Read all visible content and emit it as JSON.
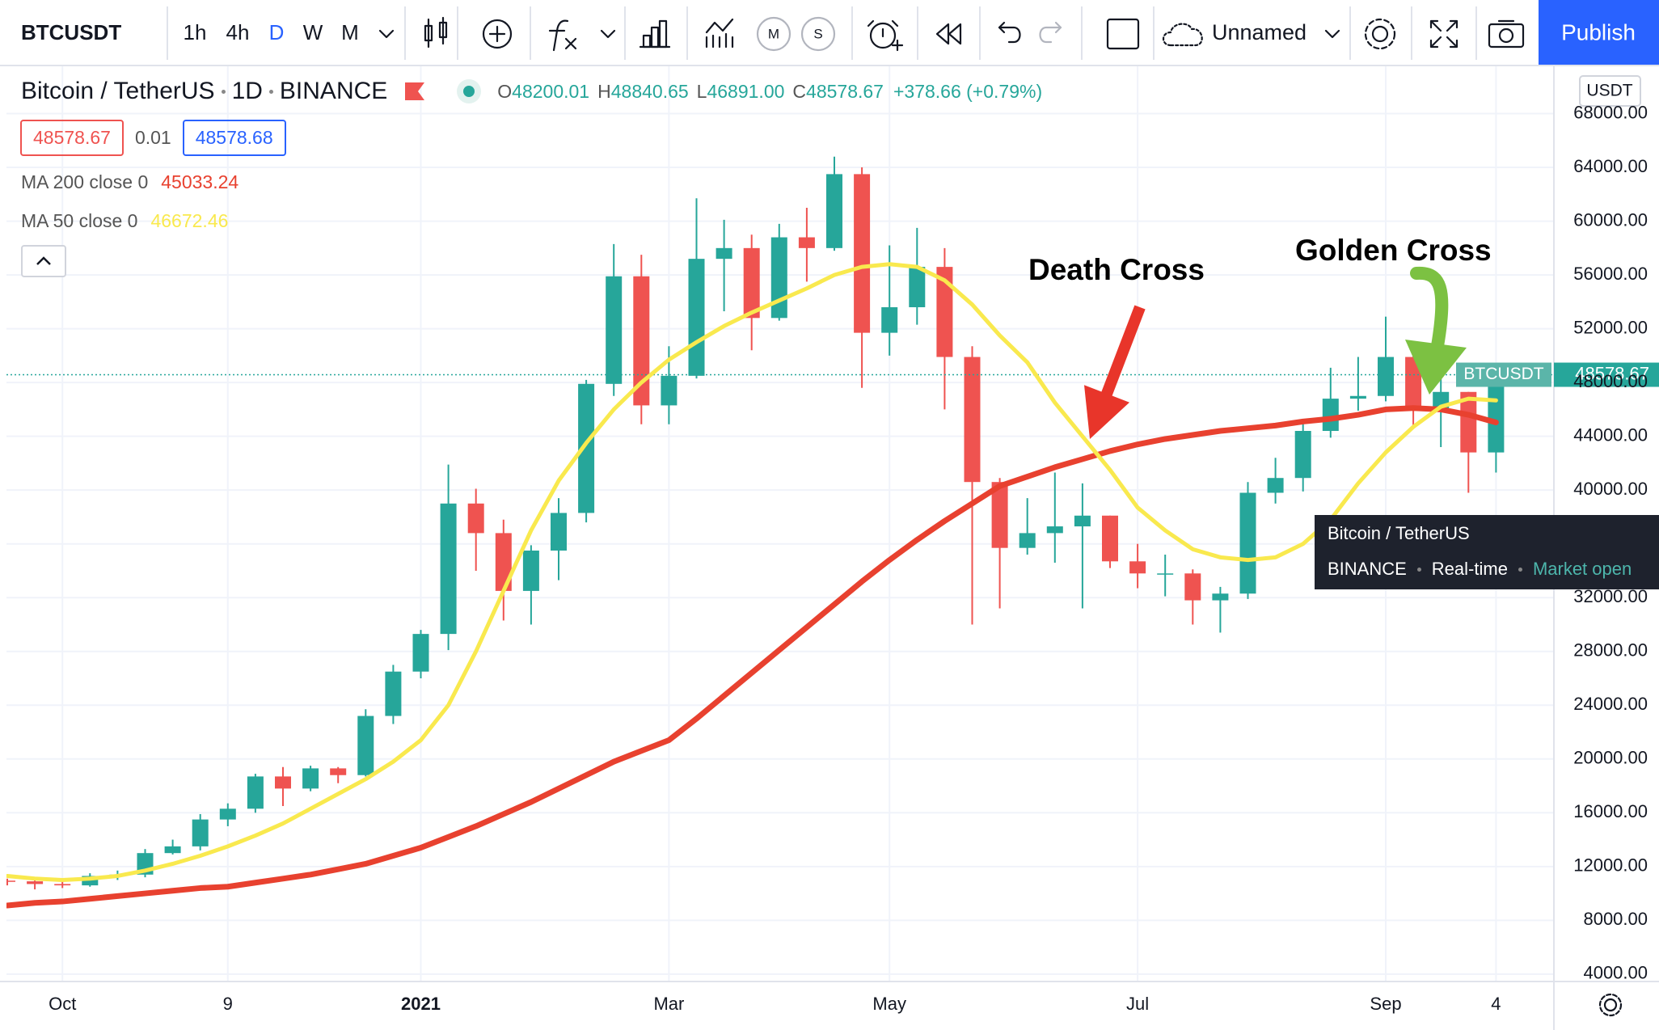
{
  "toolbar": {
    "symbol": "BTCUSDT",
    "intervals": [
      {
        "label": "1h"
      },
      {
        "label": "4h"
      },
      {
        "label": "D",
        "active": true
      },
      {
        "label": "W"
      },
      {
        "label": "M"
      }
    ],
    "circle_buttons": [
      "M",
      "S"
    ],
    "layout_name": "Unnamed",
    "publish": "Publish"
  },
  "header": {
    "ohlc": [
      {
        "label": "O",
        "value": "48200.01"
      },
      {
        "label": "H",
        "value": "48840.65"
      },
      {
        "label": "L",
        "value": "46891.00"
      },
      {
        "label": "C",
        "value": "48578.67"
      }
    ],
    "change": "+378.66 (+0.79%)",
    "spread": "0.01",
    "ask": "48578.68"
  },
  "chart_data": {
    "type": "candlestick",
    "title": "Bitcoin / TetherUS",
    "interval": "1D",
    "exchange": "BINANCE",
    "currency": "USDT",
    "categories": [
      null,
      null,
      "Oct",
      null,
      null,
      null,
      null,
      null,
      "9",
      null,
      null,
      null,
      null,
      null,
      null,
      "2021",
      null,
      null,
      null,
      null,
      null,
      null,
      null,
      null,
      "Mar",
      null,
      null,
      null,
      null,
      null,
      null,
      null,
      "May",
      null,
      null,
      null,
      null,
      null,
      null,
      null,
      null,
      "Jul",
      null,
      null,
      null,
      null,
      null,
      null,
      null,
      null,
      "Sep",
      null,
      null,
      null,
      "4"
    ],
    "series": [
      {
        "name": "BTCUSDT",
        "up_color": "#26a69a",
        "down_color": "#ef5350",
        "open": [
          10950,
          10900,
          10700,
          10600,
          11300,
          11400,
          13000,
          13500,
          15500,
          16300,
          18700,
          17800,
          19300,
          18800,
          23200,
          26500,
          29300,
          39000,
          36800,
          32500,
          35500,
          38300,
          47900,
          55900,
          46300,
          48500,
          57200,
          58000,
          52800,
          58800,
          58000,
          63500,
          51700,
          53600,
          56600,
          49900,
          40600,
          35700,
          36800,
          37300,
          38100,
          34700,
          33800,
          33800,
          31800,
          32300,
          39800,
          40900,
          44400,
          46800,
          47000,
          49900,
          46000,
          47300,
          42800
        ],
        "high": [
          11100,
          11000,
          10900,
          11500,
          11700,
          13300,
          14000,
          15900,
          16700,
          18900,
          19400,
          19500,
          19400,
          23700,
          27000,
          29600,
          41900,
          40100,
          37800,
          35900,
          39400,
          48200,
          58300,
          57500,
          50700,
          61700,
          60100,
          59000,
          59800,
          61000,
          64800,
          64000,
          58200,
          59500,
          58000,
          50700,
          40900,
          39400,
          41300,
          40500,
          38100,
          36000,
          35200,
          34100,
          32800,
          40600,
          42400,
          45300,
          49100,
          49900,
          52900,
          50500,
          48800,
          47300,
          49100
        ],
        "low": [
          10600,
          10300,
          10400,
          10500,
          11000,
          11200,
          12900,
          13200,
          15000,
          16000,
          16500,
          17600,
          18200,
          18700,
          22600,
          26000,
          28100,
          34000,
          30300,
          30000,
          33300,
          37600,
          47000,
          44900,
          44900,
          48300,
          53300,
          50400,
          52600,
          55500,
          57800,
          47600,
          50000,
          52300,
          46000,
          30000,
          31200,
          35200,
          34600,
          31200,
          34200,
          32700,
          32100,
          30000,
          29400,
          31900,
          39000,
          39900,
          43900,
          45900,
          46600,
          44800,
          43200,
          39800,
          41300
        ],
        "close": [
          10900,
          10700,
          10600,
          11300,
          11400,
          13000,
          13500,
          15500,
          16300,
          18700,
          17800,
          19300,
          18800,
          23200,
          26500,
          29300,
          39000,
          36800,
          32500,
          35500,
          38300,
          47900,
          55900,
          46300,
          48500,
          57200,
          58000,
          52800,
          58800,
          58000,
          63500,
          51700,
          53600,
          56600,
          49900,
          40600,
          35700,
          36800,
          37300,
          38100,
          34700,
          33800,
          33800,
          31800,
          32300,
          39800,
          40900,
          44400,
          46800,
          47000,
          49900,
          46000,
          47300,
          42800,
          48578.67
        ]
      },
      {
        "name": "MA 200 close 0",
        "color": "#e8412f",
        "values": [
          9100,
          9300,
          9400,
          9600,
          9800,
          10000,
          10200,
          10400,
          10500,
          10800,
          11100,
          11400,
          11800,
          12200,
          12800,
          13400,
          14200,
          15000,
          15900,
          16800,
          17800,
          18800,
          19800,
          20600,
          21400,
          23000,
          24700,
          26400,
          28100,
          29800,
          31500,
          33200,
          34800,
          36300,
          37700,
          39000,
          40300,
          41000,
          41700,
          42300,
          42900,
          43400,
          43800,
          44100,
          44400,
          44600,
          44800,
          45100,
          45300,
          45600,
          46000,
          46100,
          46000,
          45600,
          45033.24
        ]
      },
      {
        "name": "MA 50 close 0",
        "color": "#f9e94e",
        "values": [
          11300,
          11100,
          11000,
          11100,
          11300,
          11700,
          12200,
          12800,
          13500,
          14300,
          15200,
          16300,
          17400,
          18500,
          19800,
          21400,
          24000,
          28000,
          32500,
          37000,
          40700,
          43500,
          46000,
          48000,
          49700,
          51000,
          52200,
          53200,
          54100,
          55000,
          56000,
          56600,
          56800,
          56600,
          55600,
          53800,
          51500,
          49500,
          46500,
          44000,
          41500,
          38700,
          37000,
          35600,
          35000,
          34800,
          35000,
          36000,
          37800,
          40500,
          42800,
          44700,
          46200,
          46800,
          46672.46
        ]
      }
    ],
    "ylim": [
      3450,
      71400
    ],
    "yticks": [
      {
        "value": 4000,
        "label": "4000.00"
      },
      {
        "value": 8000,
        "label": "8000.00"
      },
      {
        "value": 12000,
        "label": "12000.00"
      },
      {
        "value": 16000,
        "label": "16000.00"
      },
      {
        "value": 20000,
        "label": "20000.00"
      },
      {
        "value": 24000,
        "label": "24000.00"
      },
      {
        "value": 28000,
        "label": "28000.00"
      },
      {
        "value": 32000,
        "label": "32000.00"
      },
      {
        "value": 36000,
        "label": "36000.00"
      },
      {
        "value": 40000,
        "label": "40000.00"
      },
      {
        "value": 44000,
        "label": "44000.00"
      },
      {
        "value": 48000,
        "label": "48000.00"
      },
      {
        "value": 52000,
        "label": "52000.00"
      },
      {
        "value": 56000,
        "label": "56000.00"
      },
      {
        "value": 60000,
        "label": "60000.00"
      },
      {
        "value": 64000,
        "label": "64000.00"
      },
      {
        "value": 68000,
        "label": "68000.00"
      }
    ],
    "grid": true
  },
  "tooltip": {
    "feed": "Real-time",
    "status": "Market open"
  },
  "annotations": {
    "death_cross": "Death Cross",
    "golden_cross": "Golden Cross"
  }
}
